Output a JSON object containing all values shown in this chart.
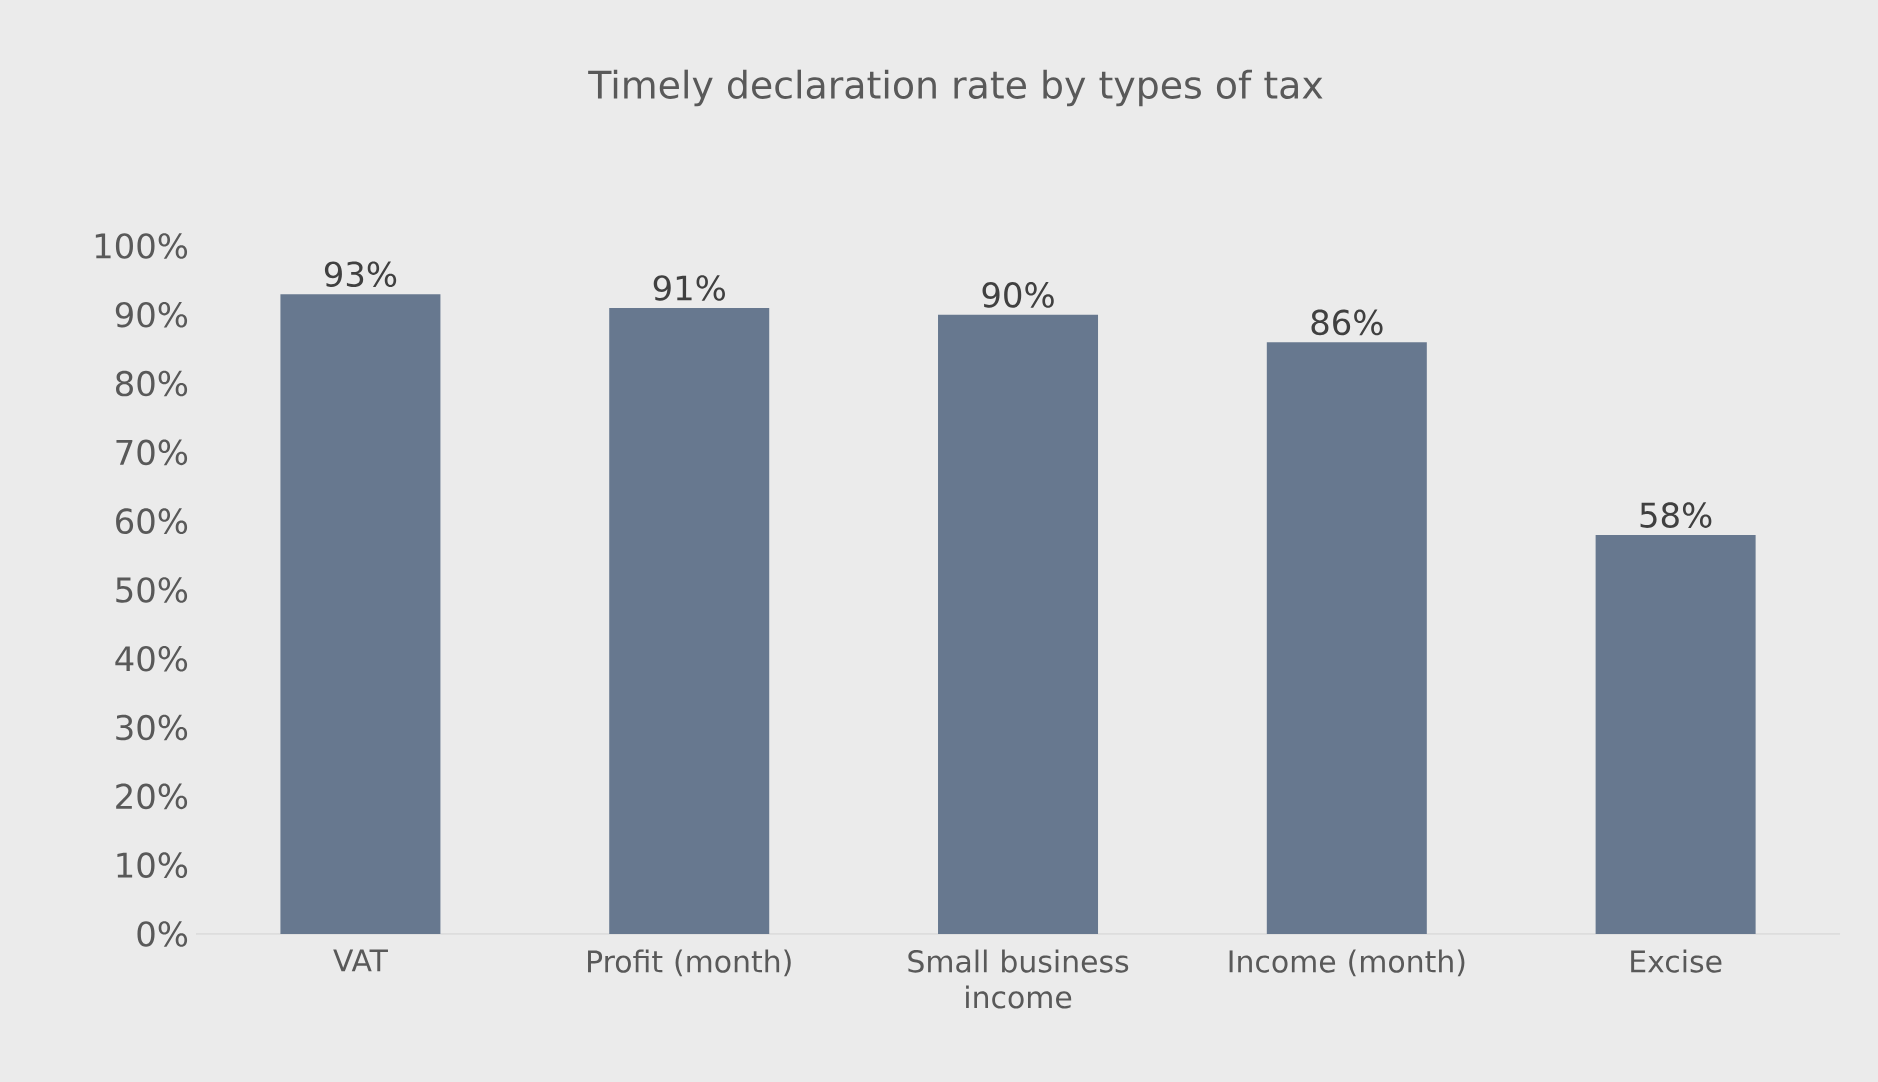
{
  "chart_data": {
    "type": "bar",
    "title": "Timely declaration rate by types of tax",
    "categories": [
      "VAT",
      "Profit (month)",
      "Small business income",
      "Income (month)",
      "Excise"
    ],
    "values": [
      93,
      91,
      90,
      86,
      58
    ],
    "value_labels": [
      "93%",
      "91%",
      "90%",
      "86%",
      "58%"
    ],
    "color": "#67788f",
    "ylim": [
      0,
      100
    ],
    "yticks": [
      {
        "value": 0,
        "label": "0%"
      },
      {
        "value": 10,
        "label": "10%"
      },
      {
        "value": 20,
        "label": "20%"
      },
      {
        "value": 30,
        "label": "30%"
      },
      {
        "value": 40,
        "label": "40%"
      },
      {
        "value": 50,
        "label": "50%"
      },
      {
        "value": 60,
        "label": "60%"
      },
      {
        "value": 70,
        "label": "70%"
      },
      {
        "value": 80,
        "label": "80%"
      },
      {
        "value": 90,
        "label": "90%"
      },
      {
        "value": 100,
        "label": "100%"
      }
    ],
    "grid": false
  }
}
